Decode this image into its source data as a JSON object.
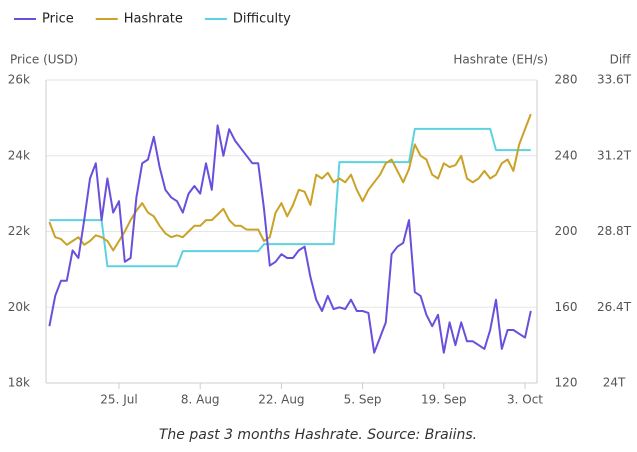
{
  "chart_data": {
    "type": "line",
    "caption": "The past 3 months Hashrate. Source: Braiins.",
    "ylabel": "Price (USD)",
    "y2label": "Hashrate (EH/s)",
    "y3label": "Diff",
    "legend": "top-left",
    "grid": true,
    "x": [
      "13. Jul",
      "14. Jul",
      "15. Jul",
      "16. Jul",
      "17. Jul",
      "18. Jul",
      "19. Jul",
      "20. Jul",
      "21. Jul",
      "22. Jul",
      "23. Jul",
      "24. Jul",
      "25. Jul",
      "26. Jul",
      "27. Jul",
      "28. Jul",
      "29. Jul",
      "30. Jul",
      "31. Jul",
      "1. Aug",
      "2. Aug",
      "3. Aug",
      "4. Aug",
      "5. Aug",
      "6. Aug",
      "7. Aug",
      "8. Aug",
      "9. Aug",
      "10. Aug",
      "11. Aug",
      "12. Aug",
      "13. Aug",
      "14. Aug",
      "15. Aug",
      "16. Aug",
      "17. Aug",
      "18. Aug",
      "19. Aug",
      "20. Aug",
      "21. Aug",
      "22. Aug",
      "23. Aug",
      "24. Aug",
      "25. Aug",
      "26. Aug",
      "27. Aug",
      "28. Aug",
      "29. Aug",
      "30. Aug",
      "31. Aug",
      "1. Sep",
      "2. Sep",
      "3. Sep",
      "4. Sep",
      "5. Sep",
      "6. Sep",
      "7. Sep",
      "8. Sep",
      "9. Sep",
      "10. Sep",
      "11. Sep",
      "12. Sep",
      "13. Sep",
      "14. Sep",
      "15. Sep",
      "16. Sep",
      "17. Sep",
      "18. Sep",
      "19. Sep",
      "20. Sep",
      "21. Sep",
      "22. Sep",
      "23. Sep",
      "24. Sep",
      "25. Sep",
      "26. Sep",
      "27. Sep",
      "28. Sep",
      "29. Sep",
      "30. Sep",
      "1. Oct",
      "2. Oct",
      "3. Oct",
      "4. Oct"
    ],
    "xticks": [
      "25. Jul",
      "8. Aug",
      "22. Aug",
      "5. Sep",
      "19. Sep",
      "3. Oct"
    ],
    "ylim": [
      18000,
      26000
    ],
    "yticks": [
      {
        "value": 18000,
        "label": "18k"
      },
      {
        "value": 20000,
        "label": "20k"
      },
      {
        "value": 22000,
        "label": "22k"
      },
      {
        "value": 24000,
        "label": "24k"
      },
      {
        "value": 26000,
        "label": "26k"
      }
    ],
    "y2lim": [
      120,
      280
    ],
    "y2ticks": [
      120,
      160,
      200,
      240,
      280
    ],
    "y3lim": [
      24,
      33.6
    ],
    "y3ticks": [
      {
        "value": 24,
        "label": "24T"
      },
      {
        "value": 26.4,
        "label": "26.4T"
      },
      {
        "value": 28.8,
        "label": "28.8T"
      },
      {
        "value": 31.2,
        "label": "31.2T"
      },
      {
        "value": 33.6,
        "label": "33.6T"
      }
    ],
    "series": [
      {
        "name": "Price",
        "color": "#6a4fdc",
        "values": [
          19500,
          20300,
          20700,
          20700,
          21500,
          21300,
          22300,
          23400,
          23800,
          22300,
          23400,
          22500,
          22800,
          21200,
          21300,
          22900,
          23800,
          23900,
          24500,
          23700,
          23100,
          22900,
          22800,
          22500,
          23000,
          23200,
          23000,
          23800,
          23100,
          24800,
          24000,
          24700,
          24400,
          24200,
          24000,
          23800,
          23800,
          22600,
          21100,
          21200,
          21400,
          21300,
          21300,
          21500,
          21600,
          20800,
          20200,
          19900,
          20300,
          19950,
          20000,
          19950,
          20200,
          19900,
          19900,
          19850,
          18800,
          19200,
          19600,
          21400,
          21600,
          21700,
          22300,
          20400,
          20300,
          19800,
          19500,
          19800,
          18800,
          19600,
          19000,
          19600,
          19100,
          19100,
          19000,
          18900,
          19400,
          20200,
          18900,
          19400,
          19400,
          19300,
          19200,
          19900
        ]
      },
      {
        "name": "Hashrate",
        "color": "#c9a227",
        "axis": "y2",
        "values": [
          205,
          197,
          196,
          193,
          195,
          197,
          193,
          195,
          198,
          197,
          195,
          190,
          195,
          200,
          206,
          211,
          215,
          210,
          208,
          203,
          199,
          197,
          198,
          197,
          200,
          203,
          203,
          206,
          206,
          209,
          212,
          206,
          203,
          203,
          201,
          201,
          201,
          195,
          197,
          210,
          215,
          208,
          214,
          222,
          221,
          214,
          230,
          228,
          231,
          226,
          228,
          226,
          230,
          222,
          216,
          222,
          226,
          230,
          236,
          238,
          232,
          226,
          233,
          246,
          240,
          238,
          230,
          228,
          236,
          234,
          235,
          240,
          228,
          226,
          228,
          232,
          228,
          230,
          236,
          238,
          232,
          246,
          254,
          262
        ]
      },
      {
        "name": "Difficulty",
        "color": "#5cd2e0",
        "axis": "y3",
        "values": [
          29.16,
          29.16,
          29.16,
          29.16,
          29.16,
          29.16,
          29.16,
          29.16,
          29.16,
          29.16,
          27.7,
          27.7,
          27.7,
          27.7,
          27.7,
          27.7,
          27.7,
          27.7,
          27.7,
          27.7,
          27.7,
          27.7,
          27.7,
          28.18,
          28.18,
          28.18,
          28.18,
          28.18,
          28.18,
          28.18,
          28.18,
          28.18,
          28.18,
          28.18,
          28.18,
          28.18,
          28.18,
          28.4,
          28.4,
          28.4,
          28.4,
          28.4,
          28.4,
          28.4,
          28.4,
          28.4,
          28.4,
          28.4,
          28.4,
          28.4,
          31.0,
          31.0,
          31.0,
          31.0,
          31.0,
          31.0,
          31.0,
          31.0,
          31.0,
          31.0,
          31.0,
          31.0,
          31.0,
          32.05,
          32.05,
          32.05,
          32.05,
          32.05,
          32.05,
          32.05,
          32.05,
          32.05,
          32.05,
          32.05,
          32.05,
          32.05,
          32.05,
          31.38,
          31.38,
          31.38,
          31.38,
          31.38,
          31.38,
          31.38
        ]
      }
    ]
  }
}
